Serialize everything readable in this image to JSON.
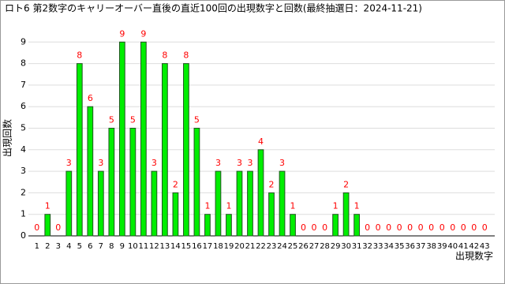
{
  "chart_data": {
    "type": "bar",
    "title": "ロト6 第2数字のキャリーオーバー直後の直近100回の出現数字と回数(最終抽選日：2024-11-21)",
    "x_label": "出現数字",
    "y_label": "出現回数",
    "categories": [
      "1",
      "2",
      "3",
      "4",
      "5",
      "6",
      "7",
      "8",
      "9",
      "10",
      "11",
      "12",
      "13",
      "14",
      "15",
      "16",
      "17",
      "18",
      "19",
      "20",
      "21",
      "22",
      "23",
      "24",
      "25",
      "26",
      "27",
      "28",
      "29",
      "30",
      "31",
      "32",
      "33",
      "34",
      "35",
      "36",
      "37",
      "38",
      "39",
      "40",
      "41",
      "42",
      "43"
    ],
    "values": [
      0,
      1,
      0,
      3,
      8,
      6,
      3,
      5,
      9,
      5,
      9,
      3,
      8,
      2,
      8,
      5,
      1,
      3,
      1,
      3,
      3,
      4,
      2,
      3,
      1,
      0,
      0,
      0,
      1,
      2,
      1,
      0,
      0,
      0,
      0,
      0,
      0,
      0,
      0,
      0,
      0,
      0,
      0
    ],
    "color": "#00ee00",
    "label_color": "#ff0000",
    "ylim": [
      0,
      10
    ],
    "yticks": [
      0,
      1,
      2,
      3,
      4,
      5,
      6,
      7,
      8,
      9
    ],
    "grid": true
  }
}
